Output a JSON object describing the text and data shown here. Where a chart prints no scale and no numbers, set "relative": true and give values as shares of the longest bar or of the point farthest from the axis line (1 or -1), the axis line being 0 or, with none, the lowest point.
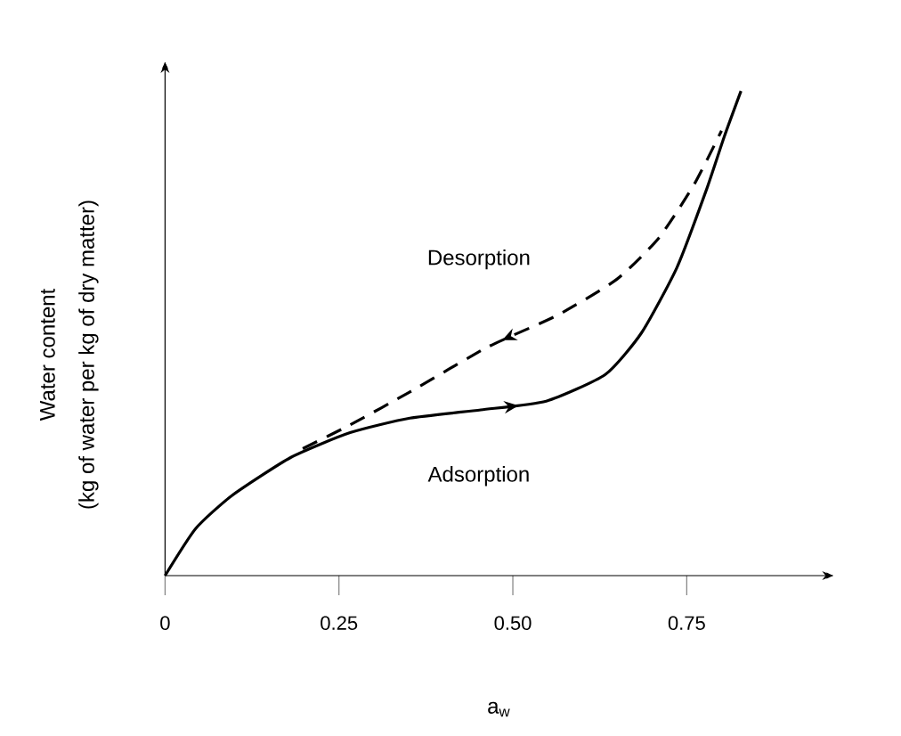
{
  "chart_data": {
    "type": "line",
    "relative": true,
    "xlabel": "a$_{w}$",
    "ylabel": "Water content",
    "annotations": [
      "(kg of water per kg of dry matter)"
    ],
    "xlim": [
      0,
      0.96
    ],
    "xticks": [
      0,
      0.25,
      {
        "value": 0.5,
        "label": "0.50"
      },
      0.75
    ],
    "marker": "none",
    "grid": false,
    "series": [
      {
        "name": "Adsorption",
        "color": "#000000",
        "line_style": "solid",
        "x": [
          0,
          0.044,
          0.096,
          0.181,
          0.266,
          0.352,
          0.454,
          0.548,
          0.633,
          0.685,
          0.736,
          0.778,
          0.804,
          0.828
        ],
        "values": [
          0,
          0.097,
          0.165,
          0.244,
          0.295,
          0.325,
          0.342,
          0.36,
          0.415,
          0.501,
          0.636,
          0.795,
          0.906,
          1.0
        ]
      },
      {
        "name": "Desorption",
        "color": "#000000",
        "line_style": "dashed",
        "x": [
          0.198,
          0.266,
          0.352,
          0.463,
          0.565,
          0.65,
          0.71,
          0.761,
          0.8
        ],
        "values": [
          0.262,
          0.311,
          0.379,
          0.471,
          0.538,
          0.612,
          0.697,
          0.808,
          0.918
        ]
      }
    ]
  }
}
